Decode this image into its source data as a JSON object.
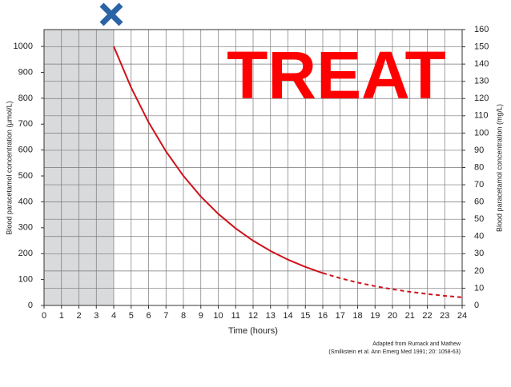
{
  "chart_data": {
    "type": "line",
    "title": "TREAT",
    "x_label": "Time (hours)",
    "y_label": "Blood paracetamol concentration (µmol/L)",
    "y2_label": "Blood paracetamol concentration (mg/L)",
    "source": [
      "Adapted from Rumack and Mathew",
      "(Smilkstein et al. Ann Emerg Med 1991; 20: 1058-63)"
    ],
    "xlim": [
      0,
      24
    ],
    "xticks": [
      0,
      1,
      2,
      3,
      4,
      5,
      6,
      7,
      8,
      9,
      10,
      11,
      12,
      13,
      14,
      15,
      16,
      17,
      18,
      19,
      20,
      21,
      22,
      23,
      24
    ],
    "ylim": [
      0,
      1065
    ],
    "yticks": [
      0,
      100,
      200,
      300,
      400,
      500,
      600,
      700,
      800,
      900,
      1000
    ],
    "y2lim": [
      0,
      160
    ],
    "y2ticks": [
      0,
      10,
      20,
      30,
      40,
      50,
      60,
      70,
      80,
      90,
      100,
      110,
      120,
      130,
      140,
      150,
      160
    ],
    "grid": true,
    "shaded_region": [
      0,
      4
    ],
    "series": [
      {
        "color": "#d0121b",
        "style": "solid",
        "x": [
          4,
          5,
          6,
          7,
          8,
          9,
          10,
          11,
          12,
          13,
          14,
          15,
          16
        ],
        "values": [
          1000,
          840.9,
          707.1,
          594.6,
          500,
          420.4,
          353.6,
          297.3,
          250,
          210.2,
          176.8,
          148.7,
          125
        ]
      },
      {
        "color": "#d0121b",
        "style": "dashed",
        "x": [
          16,
          17,
          18,
          19,
          20,
          21,
          22,
          23,
          24
        ],
        "values": [
          125,
          105.1,
          88.4,
          74.3,
          62.5,
          52.6,
          44.2,
          37.2,
          31.25
        ]
      }
    ]
  }
}
